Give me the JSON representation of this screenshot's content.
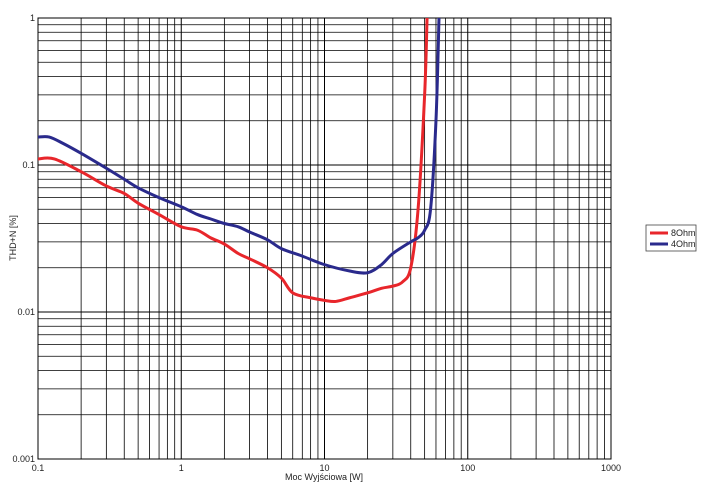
{
  "chart_data": {
    "type": "line",
    "xlabel": "Moc Wyjściowa [W]",
    "ylabel": "THD+N [%]",
    "x_scale": "log",
    "y_scale": "log",
    "xlim": [
      0.1,
      1000
    ],
    "ylim": [
      0.001,
      1
    ],
    "grid": true,
    "legend_position": "right",
    "x_ticks": [
      "0.1",
      "1",
      "10",
      "100",
      "1000"
    ],
    "y_ticks": [
      "0.001",
      "0.01",
      "0.1",
      "1"
    ],
    "series": [
      {
        "name": "8Ohm",
        "color": "#e8262b",
        "x": [
          0.1,
          0.13,
          0.2,
          0.3,
          0.4,
          0.5,
          0.7,
          1,
          1.3,
          1.6,
          2,
          2.5,
          3,
          4,
          5,
          6,
          8,
          10,
          12,
          15,
          20,
          25,
          30,
          35,
          40,
          45,
          50,
          52
        ],
        "y": [
          0.11,
          0.11,
          0.09,
          0.072,
          0.064,
          0.055,
          0.046,
          0.038,
          0.036,
          0.032,
          0.029,
          0.025,
          0.023,
          0.02,
          0.017,
          0.0135,
          0.0125,
          0.012,
          0.0118,
          0.0125,
          0.0135,
          0.0145,
          0.015,
          0.016,
          0.02,
          0.05,
          0.3,
          1.0
        ]
      },
      {
        "name": "4Ohm",
        "color": "#2a2a8c",
        "x": [
          0.1,
          0.12,
          0.15,
          0.2,
          0.3,
          0.4,
          0.5,
          0.7,
          1,
          1.3,
          1.6,
          2,
          2.5,
          3,
          4,
          5,
          7,
          10,
          15,
          20,
          25,
          30,
          40,
          45,
          50,
          55,
          60,
          63
        ],
        "y": [
          0.155,
          0.155,
          0.14,
          0.12,
          0.095,
          0.08,
          0.07,
          0.06,
          0.052,
          0.046,
          0.043,
          0.04,
          0.038,
          0.035,
          0.031,
          0.027,
          0.024,
          0.021,
          0.019,
          0.0185,
          0.021,
          0.025,
          0.03,
          0.032,
          0.036,
          0.05,
          0.2,
          1.0
        ]
      }
    ]
  }
}
